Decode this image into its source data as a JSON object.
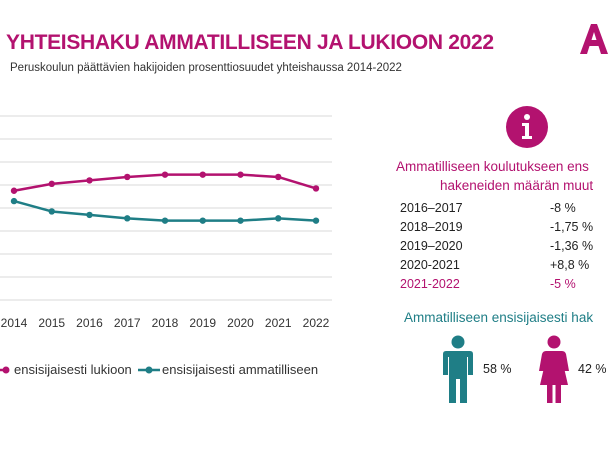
{
  "header": {
    "title": "YHTEISHAKU AMMATILLISEEN JA LUKIOON 2022",
    "subtitle": "Peruskoulun päättävien hakijoiden prosenttiosuudet yhteishaussa 2014-2022"
  },
  "colors": {
    "magenta": "#b3126f",
    "teal": "#1f7e86",
    "grid": "#d9d9d9"
  },
  "chart_data": {
    "type": "line",
    "x": [
      "2014",
      "2015",
      "2016",
      "2017",
      "2018",
      "2019",
      "2020",
      "2021",
      "2022"
    ],
    "ylim": [
      0,
      80
    ],
    "grid": true,
    "legend_position": "bottom",
    "series": [
      {
        "name": "ensisijaisesti lukioon",
        "color": "#b3126f",
        "values": [
          47.5,
          50.5,
          52,
          53.5,
          54.5,
          54.5,
          54.5,
          53.5,
          48.5
        ]
      },
      {
        "name": "ensisijaisesti ammatilliseen",
        "color": "#1f7e86",
        "values": [
          43,
          38.5,
          37,
          35.5,
          34.5,
          34.5,
          34.5,
          35.5,
          34.5
        ]
      }
    ]
  },
  "info_panel": {
    "icon": "info-icon",
    "title_line1": "Ammatilliseen koulutukseen ens",
    "title_line2": "hakeneiden määrän muut",
    "rows": [
      {
        "period": "2016–2017",
        "value": "-8  %"
      },
      {
        "period": "2018–2019",
        "value": "-1,75  %"
      },
      {
        "period": "2019–2020",
        "value": "-1,36  %"
      },
      {
        "period": "2020-2021",
        "value": "+8,8 %"
      },
      {
        "period": "2021-2022",
        "value": "-5 %"
      }
    ]
  },
  "vocational": {
    "title": "Ammatilliseen ensisijaisesti hak",
    "male_icon": "male-person-icon",
    "female_icon": "female-person-icon",
    "male_pct": "58 %",
    "female_pct": "42 %"
  }
}
